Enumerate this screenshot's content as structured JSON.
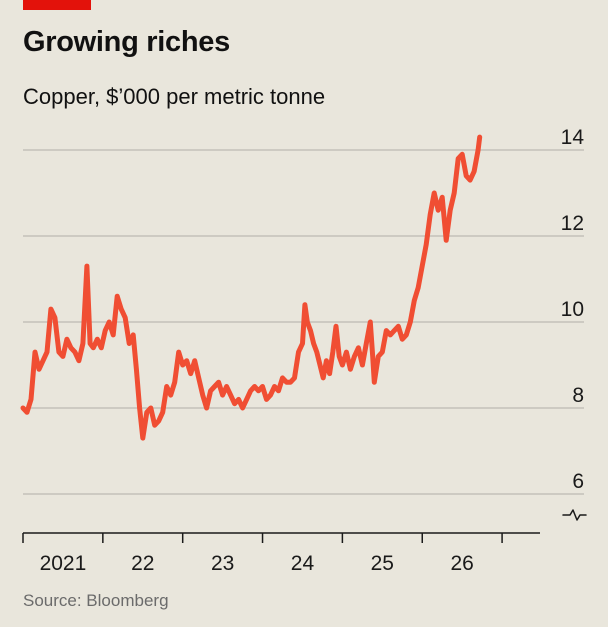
{
  "header": {
    "title": "Growing riches",
    "subtitle": "Copper, $’000 per metric tonne"
  },
  "footer": {
    "source": "Source: Bloomberg"
  },
  "colors": {
    "accent": "#e3120b",
    "line": "#f04e33",
    "grid": "#bdbab2",
    "axis": "#1a1a1a",
    "background": "#e9e6dc"
  },
  "chart_data": {
    "type": "line",
    "title": "Growing riches",
    "subtitle": "Copper, $’000 per metric tonne",
    "xlabel": "",
    "ylabel": "",
    "y_axis_position": "right",
    "ylim": [
      6,
      14
    ],
    "y_axis_break": true,
    "y_ticks": [
      6,
      8,
      10,
      12,
      14
    ],
    "xlim": [
      2020.0,
      2026.55
    ],
    "x_ticks": [
      {
        "label": "2021",
        "x": 2020.5
      },
      {
        "label": "22",
        "x": 2021.5
      },
      {
        "label": "23",
        "x": 2022.5
      },
      {
        "label": "24",
        "x": 2023.5
      },
      {
        "label": "25",
        "x": 2024.5
      },
      {
        "label": "26",
        "x": 2025.5
      }
    ],
    "grid": "horizontal",
    "series": [
      {
        "values": [
          [
            2020.0,
            8.0
          ],
          [
            2020.05,
            7.9
          ],
          [
            2020.1,
            8.2
          ],
          [
            2020.15,
            9.3
          ],
          [
            2020.2,
            8.9
          ],
          [
            2020.25,
            9.1
          ],
          [
            2020.3,
            9.3
          ],
          [
            2020.35,
            10.3
          ],
          [
            2020.4,
            10.1
          ],
          [
            2020.45,
            9.3
          ],
          [
            2020.5,
            9.2
          ],
          [
            2020.55,
            9.6
          ],
          [
            2020.6,
            9.4
          ],
          [
            2020.65,
            9.3
          ],
          [
            2020.7,
            9.1
          ],
          [
            2020.75,
            9.5
          ],
          [
            2020.8,
            11.3
          ],
          [
            2020.84,
            9.5
          ],
          [
            2020.88,
            9.4
          ],
          [
            2020.93,
            9.6
          ],
          [
            2020.98,
            9.4
          ],
          [
            2021.03,
            9.8
          ],
          [
            2021.08,
            10.0
          ],
          [
            2021.13,
            9.7
          ],
          [
            2021.18,
            10.6
          ],
          [
            2021.23,
            10.3
          ],
          [
            2021.28,
            10.1
          ],
          [
            2021.33,
            9.5
          ],
          [
            2021.38,
            9.7
          ],
          [
            2021.42,
            8.9
          ],
          [
            2021.46,
            8.0
          ],
          [
            2021.5,
            7.3
          ],
          [
            2021.55,
            7.9
          ],
          [
            2021.6,
            8.0
          ],
          [
            2021.65,
            7.6
          ],
          [
            2021.7,
            7.7
          ],
          [
            2021.75,
            7.9
          ],
          [
            2021.8,
            8.5
          ],
          [
            2021.85,
            8.3
          ],
          [
            2021.9,
            8.6
          ],
          [
            2021.95,
            9.3
          ],
          [
            2022.0,
            9.0
          ],
          [
            2022.05,
            9.1
          ],
          [
            2022.1,
            8.8
          ],
          [
            2022.15,
            9.1
          ],
          [
            2022.2,
            8.7
          ],
          [
            2022.25,
            8.3
          ],
          [
            2022.3,
            8.0
          ],
          [
            2022.35,
            8.4
          ],
          [
            2022.4,
            8.5
          ],
          [
            2022.45,
            8.6
          ],
          [
            2022.5,
            8.3
          ],
          [
            2022.55,
            8.5
          ],
          [
            2022.6,
            8.3
          ],
          [
            2022.65,
            8.1
          ],
          [
            2022.7,
            8.2
          ],
          [
            2022.75,
            8.0
          ],
          [
            2022.8,
            8.2
          ],
          [
            2022.85,
            8.4
          ],
          [
            2022.9,
            8.5
          ],
          [
            2022.95,
            8.4
          ],
          [
            2023.0,
            8.5
          ],
          [
            2023.05,
            8.2
          ],
          [
            2023.1,
            8.3
          ],
          [
            2023.15,
            8.5
          ],
          [
            2023.2,
            8.4
          ],
          [
            2023.25,
            8.7
          ],
          [
            2023.3,
            8.6
          ],
          [
            2023.35,
            8.6
          ],
          [
            2023.4,
            8.7
          ],
          [
            2023.45,
            9.3
          ],
          [
            2023.5,
            9.5
          ],
          [
            2023.53,
            10.4
          ],
          [
            2023.56,
            10.0
          ],
          [
            2023.6,
            9.8
          ],
          [
            2023.64,
            9.5
          ],
          [
            2023.68,
            9.3
          ],
          [
            2023.72,
            9.0
          ],
          [
            2023.76,
            8.7
          ],
          [
            2023.8,
            9.1
          ],
          [
            2023.84,
            8.8
          ],
          [
            2023.88,
            9.3
          ],
          [
            2023.92,
            9.9
          ],
          [
            2023.96,
            9.2
          ],
          [
            2024.0,
            9.0
          ],
          [
            2024.05,
            9.3
          ],
          [
            2024.1,
            8.9
          ],
          [
            2024.15,
            9.2
          ],
          [
            2024.2,
            9.4
          ],
          [
            2024.25,
            9.0
          ],
          [
            2024.3,
            9.5
          ],
          [
            2024.35,
            10.0
          ],
          [
            2024.38,
            9.2
          ],
          [
            2024.4,
            8.6
          ],
          [
            2024.45,
            9.2
          ],
          [
            2024.5,
            9.3
          ],
          [
            2024.55,
            9.8
          ],
          [
            2024.6,
            9.7
          ],
          [
            2024.65,
            9.8
          ],
          [
            2024.7,
            9.9
          ],
          [
            2024.75,
            9.6
          ],
          [
            2024.8,
            9.7
          ],
          [
            2024.85,
            10.0
          ],
          [
            2024.9,
            10.5
          ],
          [
            2024.95,
            10.8
          ],
          [
            2025.0,
            11.3
          ],
          [
            2025.05,
            11.8
          ],
          [
            2025.1,
            12.5
          ],
          [
            2025.15,
            13.0
          ],
          [
            2025.2,
            12.6
          ],
          [
            2025.25,
            12.9
          ],
          [
            2025.3,
            11.9
          ],
          [
            2025.35,
            12.6
          ],
          [
            2025.4,
            13.0
          ],
          [
            2025.45,
            13.8
          ],
          [
            2025.5,
            13.9
          ],
          [
            2025.55,
            13.4
          ],
          [
            2025.6,
            13.3
          ],
          [
            2025.65,
            13.5
          ],
          [
            2025.7,
            14.0
          ],
          [
            2025.72,
            14.3
          ]
        ]
      }
    ]
  }
}
